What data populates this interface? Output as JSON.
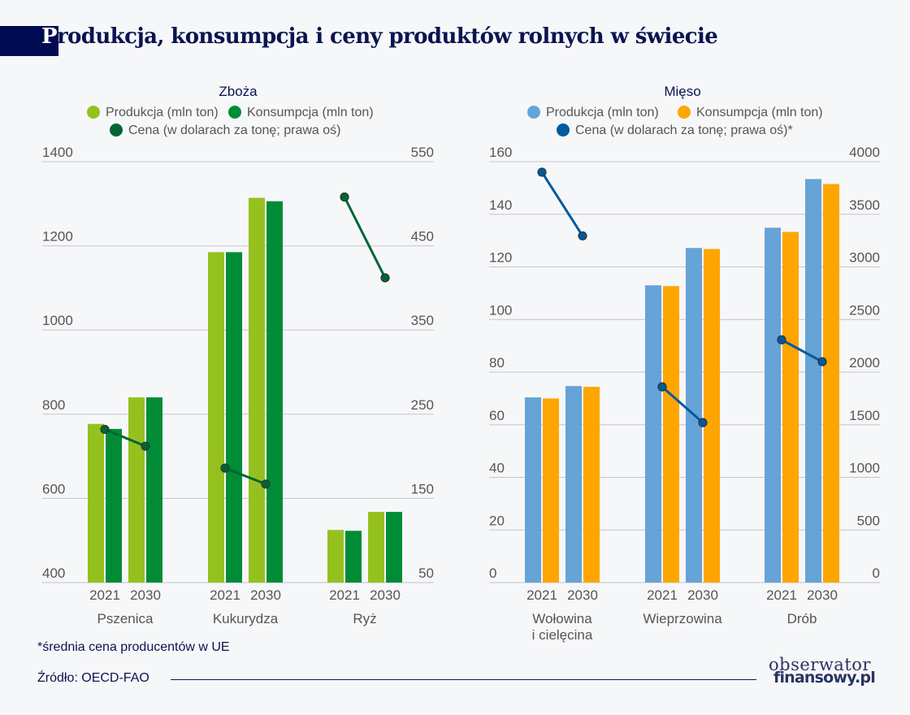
{
  "title": {
    "first_letter": "P",
    "rest": "rodukcja, konsumpcja i ceny produktów rolnych w świecie"
  },
  "footnote": "*średnia cena producentów w UE",
  "source": "Źródło: OECD-FAO",
  "logo": {
    "line1": "obserwator",
    "line2": "finansowy.pl"
  },
  "chart_data": [
    {
      "type": "bar",
      "title": "Zboża",
      "legend": [
        {
          "name": "Produkcja (mln ton)",
          "color": "#95c11f"
        },
        {
          "name": "Konsumpcja (mln ton)",
          "color": "#008c36"
        },
        {
          "name": "Cena (w dolarach za tonę; prawa oś)",
          "color": "#006633"
        }
      ],
      "legend_placement": "top-center",
      "groups": [
        "Pszenica",
        "Kukurydza",
        "Ryż"
      ],
      "years": [
        "2021",
        "2030"
      ],
      "series": [
        {
          "name": "Produkcja (mln ton)",
          "axis": "left",
          "kind": "bar",
          "color": "#95c11f",
          "values": [
            [
              777,
              840
            ],
            [
              1185,
              1314
            ],
            [
              525,
              568
            ]
          ]
        },
        {
          "name": "Konsumpcja (mln ton)",
          "axis": "left",
          "kind": "bar",
          "color": "#008c36",
          "values": [
            [
              765,
              840
            ],
            [
              1185,
              1306
            ],
            [
              523,
              568
            ]
          ]
        },
        {
          "name": "Cena (w dolarach za tonę; prawa oś)",
          "axis": "right",
          "kind": "line",
          "color": "#006633",
          "values": [
            [
              232,
              212
            ],
            [
              186,
              167
            ],
            [
              508,
              412
            ]
          ]
        }
      ],
      "ylim_left": [
        400,
        1400
      ],
      "yticks_left": [
        400,
        600,
        800,
        1000,
        1200,
        1400
      ],
      "ylim_right": [
        50,
        550
      ],
      "yticks_right": [
        50,
        150,
        250,
        350,
        450,
        550
      ],
      "grid": true
    },
    {
      "type": "bar",
      "title": "Mięso",
      "legend": [
        {
          "name": "Produkcja (mln ton)",
          "color": "#66a3d6"
        },
        {
          "name": "Konsumpcja (mln ton)",
          "color": "#ffa500"
        },
        {
          "name": "Cena (w dolarach za tonę; prawa oś)*",
          "color": "#005a9e"
        }
      ],
      "legend_placement": "top-center",
      "groups": [
        "Wołowina\ni cielęcina",
        "Wieprzowina",
        "Drób"
      ],
      "years": [
        "2021",
        "2030"
      ],
      "series": [
        {
          "name": "Produkcja (mln ton)",
          "axis": "left",
          "kind": "bar",
          "color": "#66a3d6",
          "values": [
            [
              70.4,
              74.7
            ],
            [
              113,
              127.2
            ],
            [
              134.9,
              153.4
            ]
          ]
        },
        {
          "name": "Konsumpcja (mln ton)",
          "axis": "left",
          "kind": "bar",
          "color": "#ffa500",
          "values": [
            [
              70,
              74.4
            ],
            [
              112.7,
              126.8
            ],
            [
              133.3,
              151.5
            ]
          ]
        },
        {
          "name": "Cena (w dolarach za tonę; prawa oś)*",
          "axis": "right",
          "kind": "line",
          "color": "#005a9e",
          "values": [
            [
              3900,
              3295
            ],
            [
              1860,
              1520
            ],
            [
              2307,
              2099
            ]
          ]
        }
      ],
      "ylim_left": [
        0,
        160
      ],
      "yticks_left": [
        0,
        20,
        40,
        60,
        80,
        100,
        120,
        140,
        160
      ],
      "ylim_right": [
        0,
        4000
      ],
      "yticks_right": [
        0,
        500,
        1000,
        1500,
        2000,
        2500,
        3000,
        3500,
        4000
      ],
      "grid": true
    }
  ]
}
